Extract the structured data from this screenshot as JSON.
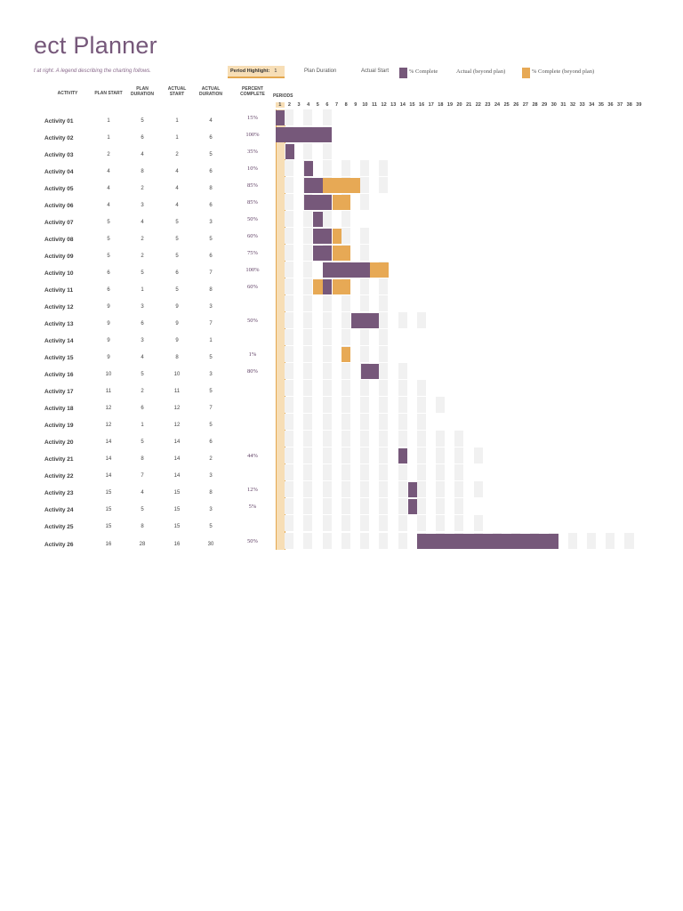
{
  "header": {
    "title": "ect Planner",
    "subtitle": "t at right.  A legend describing the charting follows.",
    "period_highlight_label": "Period Highlight:",
    "period_highlight_value": "1"
  },
  "legend": {
    "plan_duration": "Plan Duration",
    "actual_start": "Actual Start",
    "pct_complete": "% Complete",
    "actual_beyond": "Actual (beyond plan)",
    "pct_beyond": "% Complete (beyond plan)"
  },
  "columns": {
    "activity": "ACTIVITY",
    "plan_start": "PLAN START",
    "plan_duration_1": "PLAN",
    "plan_duration_2": "DURATION",
    "actual_start_1": "ACTUAL",
    "actual_start_2": "START",
    "actual_duration_1": "ACTUAL",
    "actual_duration_2": "DURATION",
    "percent_complete_1": "PERCENT",
    "percent_complete_2": "COMPLETE",
    "periods": "PERIODS"
  },
  "colors": {
    "accent": "#76587a",
    "highlight": "#f7deb6",
    "highlight_border": "#e4a84f",
    "beyond": "#e7a955",
    "grid": "#f1f1f1"
  },
  "periods": [
    "1",
    "2",
    "3",
    "4",
    "5",
    "6",
    "7",
    "8",
    "9",
    "10",
    "11",
    "12",
    "13",
    "14",
    "15",
    "16",
    "17",
    "18",
    "19",
    "20",
    "21",
    "22",
    "23",
    "24",
    "25",
    "26",
    "27",
    "28",
    "29",
    "30",
    "31",
    "32",
    "33",
    "34",
    "35",
    "36",
    "37",
    "38",
    "39"
  ],
  "activities": [
    {
      "name": "Activity 01",
      "plan_start": "1",
      "plan_duration": "5",
      "actual_start": "1",
      "actual_duration": "4",
      "percent": "15%"
    },
    {
      "name": "Activity 02",
      "plan_start": "1",
      "plan_duration": "6",
      "actual_start": "1",
      "actual_duration": "6",
      "percent": "100%"
    },
    {
      "name": "Activity 03",
      "plan_start": "2",
      "plan_duration": "4",
      "actual_start": "2",
      "actual_duration": "5",
      "percent": "35%"
    },
    {
      "name": "Activity 04",
      "plan_start": "4",
      "plan_duration": "8",
      "actual_start": "4",
      "actual_duration": "6",
      "percent": "10%"
    },
    {
      "name": "Activity 05",
      "plan_start": "4",
      "plan_duration": "2",
      "actual_start": "4",
      "actual_duration": "8",
      "percent": "85%"
    },
    {
      "name": "Activity 06",
      "plan_start": "4",
      "plan_duration": "3",
      "actual_start": "4",
      "actual_duration": "6",
      "percent": "85%"
    },
    {
      "name": "Activity 07",
      "plan_start": "5",
      "plan_duration": "4",
      "actual_start": "5",
      "actual_duration": "3",
      "percent": "50%"
    },
    {
      "name": "Activity 08",
      "plan_start": "5",
      "plan_duration": "2",
      "actual_start": "5",
      "actual_duration": "5",
      "percent": "60%"
    },
    {
      "name": "Activity 09",
      "plan_start": "5",
      "plan_duration": "2",
      "actual_start": "5",
      "actual_duration": "6",
      "percent": "75%"
    },
    {
      "name": "Activity 10",
      "plan_start": "6",
      "plan_duration": "5",
      "actual_start": "6",
      "actual_duration": "7",
      "percent": "100%"
    },
    {
      "name": "Activity 11",
      "plan_start": "6",
      "plan_duration": "1",
      "actual_start": "5",
      "actual_duration": "8",
      "percent": "60%"
    },
    {
      "name": "Activity 12",
      "plan_start": "9",
      "plan_duration": "3",
      "actual_start": "9",
      "actual_duration": "3",
      "percent": ""
    },
    {
      "name": "Activity 13",
      "plan_start": "9",
      "plan_duration": "6",
      "actual_start": "9",
      "actual_duration": "7",
      "percent": "50%"
    },
    {
      "name": "Activity 14",
      "plan_start": "9",
      "plan_duration": "3",
      "actual_start": "9",
      "actual_duration": "1",
      "percent": ""
    },
    {
      "name": "Activity 15",
      "plan_start": "9",
      "plan_duration": "4",
      "actual_start": "8",
      "actual_duration": "5",
      "percent": "1%"
    },
    {
      "name": "Activity 16",
      "plan_start": "10",
      "plan_duration": "5",
      "actual_start": "10",
      "actual_duration": "3",
      "percent": "80%"
    },
    {
      "name": "Activity 17",
      "plan_start": "11",
      "plan_duration": "2",
      "actual_start": "11",
      "actual_duration": "5",
      "percent": ""
    },
    {
      "name": "Activity 18",
      "plan_start": "12",
      "plan_duration": "6",
      "actual_start": "12",
      "actual_duration": "7",
      "percent": ""
    },
    {
      "name": "Activity 19",
      "plan_start": "12",
      "plan_duration": "1",
      "actual_start": "12",
      "actual_duration": "5",
      "percent": ""
    },
    {
      "name": "Activity 20",
      "plan_start": "14",
      "plan_duration": "5",
      "actual_start": "14",
      "actual_duration": "6",
      "percent": ""
    },
    {
      "name": "Activity 21",
      "plan_start": "14",
      "plan_duration": "8",
      "actual_start": "14",
      "actual_duration": "2",
      "percent": "44%"
    },
    {
      "name": "Activity 22",
      "plan_start": "14",
      "plan_duration": "7",
      "actual_start": "14",
      "actual_duration": "3",
      "percent": ""
    },
    {
      "name": "Activity 23",
      "plan_start": "15",
      "plan_duration": "4",
      "actual_start": "15",
      "actual_duration": "8",
      "percent": "12%"
    },
    {
      "name": "Activity 24",
      "plan_start": "15",
      "plan_duration": "5",
      "actual_start": "15",
      "actual_duration": "3",
      "percent": "5%"
    },
    {
      "name": "Activity 25",
      "plan_start": "15",
      "plan_duration": "8",
      "actual_start": "15",
      "actual_duration": "5",
      "percent": ""
    },
    {
      "name": "Activity 26",
      "plan_start": "16",
      "plan_duration": "28",
      "actual_start": "16",
      "actual_duration": "30",
      "percent": "50%"
    }
  ],
  "gantt_bars": [
    {
      "row": 0,
      "start": 1,
      "len": 1,
      "kind": "complete"
    },
    {
      "row": 1,
      "start": 1,
      "len": 6,
      "kind": "complete"
    },
    {
      "row": 2,
      "start": 2,
      "len": 1,
      "kind": "complete"
    },
    {
      "row": 3,
      "start": 4,
      "len": 1,
      "kind": "complete"
    },
    {
      "row": 4,
      "start": 4,
      "len": 2,
      "kind": "complete"
    },
    {
      "row": 4,
      "start": 6,
      "len": 4,
      "kind": "beyond"
    },
    {
      "row": 5,
      "start": 4,
      "len": 3,
      "kind": "complete"
    },
    {
      "row": 5,
      "start": 7,
      "len": 2,
      "kind": "beyond"
    },
    {
      "row": 6,
      "start": 5,
      "len": 1,
      "kind": "complete"
    },
    {
      "row": 7,
      "start": 5,
      "len": 2,
      "kind": "complete"
    },
    {
      "row": 7,
      "start": 7,
      "len": 1,
      "kind": "beyond"
    },
    {
      "row": 8,
      "start": 5,
      "len": 2,
      "kind": "complete"
    },
    {
      "row": 8,
      "start": 7,
      "len": 2,
      "kind": "beyond"
    },
    {
      "row": 9,
      "start": 6,
      "len": 5,
      "kind": "complete"
    },
    {
      "row": 9,
      "start": 11,
      "len": 2,
      "kind": "beyond"
    },
    {
      "row": 10,
      "start": 5,
      "len": 1,
      "kind": "beyond"
    },
    {
      "row": 10,
      "start": 6,
      "len": 1,
      "kind": "complete"
    },
    {
      "row": 10,
      "start": 7,
      "len": 2,
      "kind": "beyond"
    },
    {
      "row": 12,
      "start": 9,
      "len": 3,
      "kind": "complete"
    },
    {
      "row": 14,
      "start": 8,
      "len": 1,
      "kind": "beyond"
    },
    {
      "row": 15,
      "start": 10,
      "len": 2,
      "kind": "complete"
    },
    {
      "row": 20,
      "start": 14,
      "len": 1,
      "kind": "complete"
    },
    {
      "row": 22,
      "start": 15,
      "len": 1,
      "kind": "complete"
    },
    {
      "row": 23,
      "start": 15,
      "len": 1,
      "kind": "complete"
    },
    {
      "row": 25,
      "start": 16,
      "len": 15,
      "kind": "complete"
    }
  ]
}
